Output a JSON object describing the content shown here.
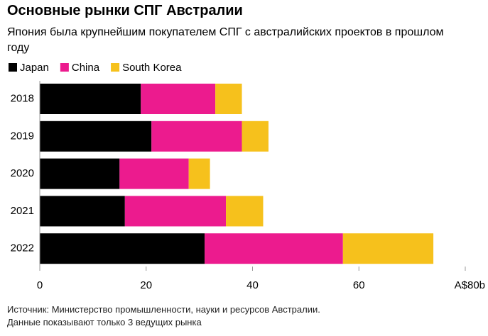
{
  "chart_data": {
    "type": "stacked-barh",
    "title": "Основные рынки СПГ Австралии",
    "subtitle": "Япония была крупнейшим покупателем СПГ с австралийских проектов в прошлом году",
    "categories": [
      "2018",
      "2019",
      "2020",
      "2021",
      "2022"
    ],
    "series": [
      {
        "name": "Japan",
        "color": "#000000",
        "values": [
          19,
          21,
          15,
          16,
          31
        ]
      },
      {
        "name": "China",
        "color": "#ec1b8e",
        "values": [
          14,
          17,
          13,
          19,
          26
        ]
      },
      {
        "name": "South Korea",
        "color": "#f6c11c",
        "values": [
          5,
          5,
          4,
          7,
          17
        ]
      }
    ],
    "xlim": [
      0,
      80
    ],
    "xticks": [
      0,
      20,
      40,
      60,
      {
        "value": 80,
        "label": "A$80b"
      }
    ],
    "legend": "top-left",
    "source": "Источник: Министерство промышленности, науки и ресурсов Австралии.",
    "note": "Данные показывают только 3 ведущих рынка"
  }
}
